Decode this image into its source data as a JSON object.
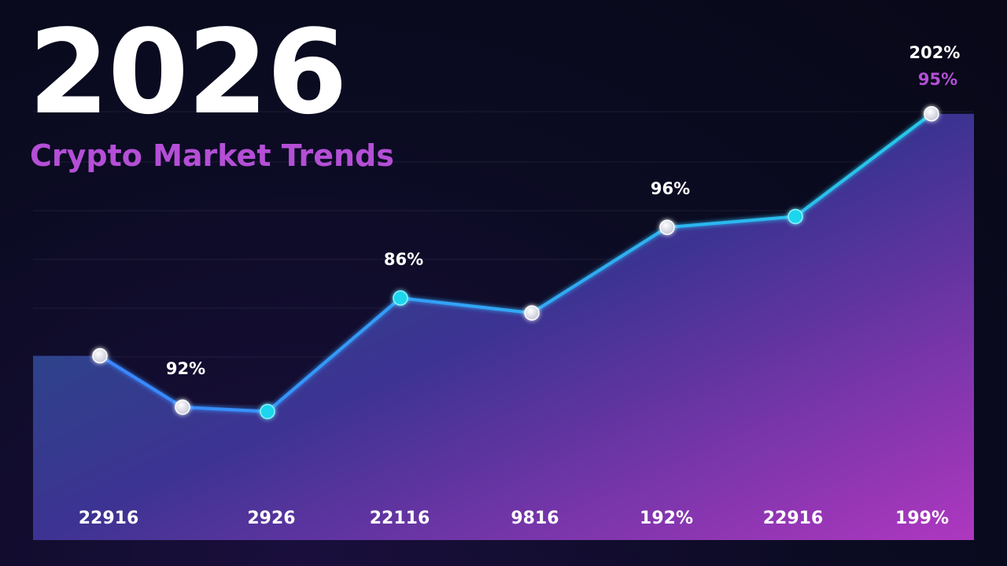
{
  "chart_data": {
    "type": "area",
    "title": "2026",
    "subtitle": "Crypto Market Trends",
    "categories": [
      "22916",
      "",
      "2926",
      "22116",
      "9816",
      "192%",
      "22916",
      "199%"
    ],
    "values": [
      86,
      62,
      60,
      113,
      106,
      146,
      151,
      199
    ],
    "ylim": [
      0,
      200
    ],
    "grid": true,
    "point_labels": [
      "",
      "92%",
      "",
      "86%",
      "",
      "96%",
      "",
      "202%"
    ],
    "extra_label": "95%",
    "colors": {
      "line_left": "#3a86ff",
      "line_right": "#27c9ea",
      "marker_white": "#f2f2f7",
      "marker_cyan": "#1ed6ee",
      "accent": "#b44fd6"
    },
    "marker_styles": [
      "white",
      "white",
      "cyan",
      "cyan",
      "white",
      "white",
      "cyan",
      "white"
    ]
  }
}
